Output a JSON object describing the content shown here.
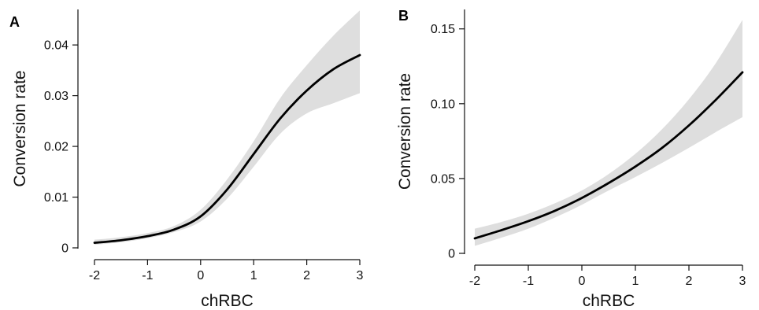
{
  "chart_data": [
    {
      "type": "line",
      "panel_label": "A",
      "xlabel": "chRBC",
      "ylabel": "Conversion rate",
      "xlim": [
        -2,
        3
      ],
      "ylim": [
        0,
        0.047
      ],
      "x_ticks": [
        -2,
        -1,
        0,
        1,
        2,
        3
      ],
      "x_tick_labels": [
        "-2",
        "-1",
        "0",
        "1",
        "2",
        "3"
      ],
      "y_ticks": [
        0,
        0.01,
        0.02,
        0.03,
        0.04
      ],
      "y_tick_labels": [
        "0",
        "0.01",
        "0.02",
        "0.03",
        "0.04"
      ],
      "grid": false,
      "series": [
        {
          "line_color": "#000000",
          "band_color": "#dedede",
          "x": [
            -2,
            -1.5,
            -1,
            -0.5,
            0,
            0.5,
            1,
            1.5,
            2,
            2.5,
            3
          ],
          "y": [
            0.001,
            0.0015,
            0.0023,
            0.0036,
            0.0062,
            0.0115,
            0.0185,
            0.0255,
            0.031,
            0.0352,
            0.038
          ],
          "lower": [
            0.0006,
            0.0011,
            0.0019,
            0.0031,
            0.0052,
            0.0097,
            0.016,
            0.0225,
            0.0265,
            0.0285,
            0.0305
          ],
          "upper": [
            0.0016,
            0.0021,
            0.0029,
            0.0043,
            0.0075,
            0.0135,
            0.021,
            0.0295,
            0.036,
            0.0418,
            0.0468
          ]
        }
      ]
    },
    {
      "type": "line",
      "panel_label": "B",
      "xlabel": "chRBC",
      "ylabel": "Conversion rate",
      "xlim": [
        -2,
        3
      ],
      "ylim": [
        0,
        0.163
      ],
      "x_ticks": [
        -2,
        -1,
        0,
        1,
        2,
        3
      ],
      "x_tick_labels": [
        "-2",
        "-1",
        "0",
        "1",
        "2",
        "3"
      ],
      "y_ticks": [
        0,
        0.05,
        0.1,
        0.15
      ],
      "y_tick_labels": [
        "0",
        "0.05",
        "0.10",
        "0.15"
      ],
      "grid": false,
      "series": [
        {
          "line_color": "#000000",
          "band_color": "#dedede",
          "x": [
            -2,
            -1.5,
            -1,
            -0.5,
            0,
            0.5,
            1,
            1.5,
            2,
            2.5,
            3
          ],
          "y": [
            0.01,
            0.0155,
            0.0215,
            0.0285,
            0.037,
            0.047,
            0.058,
            0.0705,
            0.0855,
            0.1025,
            0.121
          ],
          "lower": [
            0.005,
            0.0105,
            0.0165,
            0.024,
            0.0325,
            0.042,
            0.051,
            0.0605,
            0.0705,
            0.081,
            0.091
          ],
          "upper": [
            0.0165,
            0.021,
            0.0265,
            0.0335,
            0.042,
            0.053,
            0.0665,
            0.083,
            0.103,
            0.127,
            0.156
          ]
        }
      ]
    }
  ]
}
